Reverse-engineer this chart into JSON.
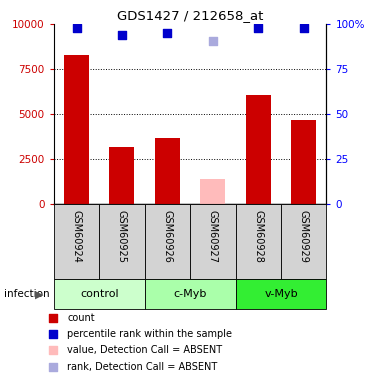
{
  "title": "GDS1427 / 212658_at",
  "samples": [
    "GSM60924",
    "GSM60925",
    "GSM60926",
    "GSM60927",
    "GSM60928",
    "GSM60929"
  ],
  "bar_values": [
    8300,
    3200,
    3700,
    1400,
    6100,
    4700
  ],
  "bar_colors": [
    "#cc0000",
    "#cc0000",
    "#cc0000",
    "#ffbbbb",
    "#cc0000",
    "#cc0000"
  ],
  "dot_values": [
    98,
    94,
    95,
    91,
    98,
    98
  ],
  "dot_colors": [
    "#0000cc",
    "#0000cc",
    "#0000cc",
    "#aaaadd",
    "#0000cc",
    "#0000cc"
  ],
  "ylim_left": [
    0,
    10000
  ],
  "ylim_right": [
    0,
    100
  ],
  "yticks_left": [
    0,
    2500,
    5000,
    7500,
    10000
  ],
  "ytick_labels_left": [
    "0",
    "2500",
    "5000",
    "7500",
    "10000"
  ],
  "yticks_right": [
    0,
    25,
    50,
    75,
    100
  ],
  "ytick_labels_right": [
    "0",
    "25",
    "50",
    "75",
    "100%"
  ],
  "groups": [
    {
      "label": "control",
      "samples": [
        0,
        1
      ],
      "color": "#ccffcc"
    },
    {
      "label": "c-Myb",
      "samples": [
        2,
        3
      ],
      "color": "#aaffaa"
    },
    {
      "label": "v-Myb",
      "samples": [
        4,
        5
      ],
      "color": "#33ee33"
    }
  ],
  "infection_label": "infection",
  "legend_colors": [
    "#cc0000",
    "#0000cc",
    "#ffbbbb",
    "#aaaadd"
  ],
  "legend_labels": [
    "count",
    "percentile rank within the sample",
    "value, Detection Call = ABSENT",
    "rank, Detection Call = ABSENT"
  ],
  "bar_width": 0.55,
  "dot_size": 35
}
